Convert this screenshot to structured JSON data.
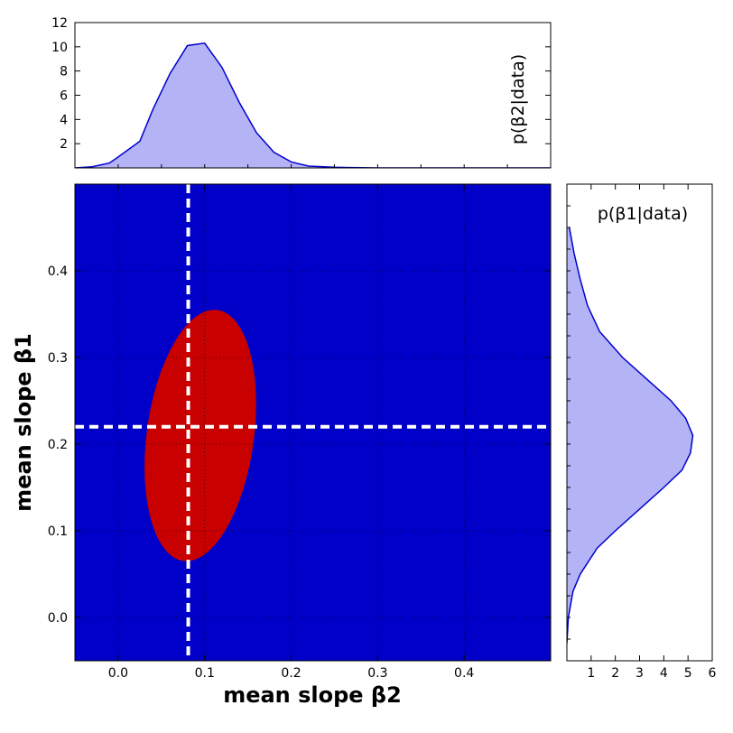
{
  "colors": {
    "contour_levels": [
      "#0000c8",
      "#0044ff",
      "#009eff",
      "#1ef2ff",
      "#8dff6c",
      "#f5ef00",
      "#ff8400",
      "#ff1e00",
      "#c80000"
    ],
    "marginal_fill": "#b3b3f5",
    "marginal_line": "#0000cc",
    "truth_line": "#ffffff"
  },
  "chart_data": [
    {
      "type": "heatmap",
      "panel": "joint",
      "xlabel": "mean slope β2",
      "ylabel": "mean slope β1",
      "xlim": [
        -0.05,
        0.5
      ],
      "ylim": [
        -0.05,
        0.5
      ],
      "xticks": [
        "0.0",
        "0.1",
        "0.2",
        "0.3",
        "0.4"
      ],
      "xtick_values": [
        0.0,
        0.1,
        0.2,
        0.3,
        0.4
      ],
      "yticks": [
        "0.0",
        "0.1",
        "0.2",
        "0.3",
        "0.4"
      ],
      "ytick_values": [
        0.0,
        0.1,
        0.2,
        0.3,
        0.4
      ],
      "grid": true,
      "distribution": {
        "center": [
          0.095,
          0.21
        ],
        "sd_x": 0.032,
        "sd_y": 0.072,
        "correlation": 0.25
      },
      "truth": {
        "beta2": 0.081,
        "beta1": 0.22
      }
    },
    {
      "type": "area",
      "panel": "top-marginal",
      "label": "p(β2|data)",
      "xlim": [
        -0.05,
        0.5
      ],
      "ylim": [
        0,
        12
      ],
      "yticks": [
        "2",
        "4",
        "6",
        "8",
        "10",
        "12"
      ],
      "ytick_values": [
        2,
        4,
        6,
        8,
        10,
        12
      ],
      "x": [
        -0.05,
        -0.03,
        -0.01,
        0.0,
        0.025,
        0.04,
        0.06,
        0.08,
        0.1,
        0.12,
        0.14,
        0.16,
        0.18,
        0.2,
        0.22,
        0.25,
        0.3,
        0.5
      ],
      "values": [
        0.0,
        0.1,
        0.4,
        0.9,
        2.2,
        4.8,
        7.8,
        10.1,
        10.3,
        8.3,
        5.4,
        2.9,
        1.3,
        0.5,
        0.15,
        0.05,
        0.0,
        0.0
      ]
    },
    {
      "type": "area",
      "panel": "right-marginal",
      "orientation": "horizontal",
      "label": "p(β1|data)",
      "xlim": [
        0,
        6
      ],
      "xticks": [
        "1",
        "2",
        "3",
        "4",
        "5",
        "6"
      ],
      "xtick_values": [
        1,
        2,
        3,
        4,
        5,
        6
      ],
      "y": [
        -0.03,
        0.0,
        0.03,
        0.05,
        0.08,
        0.1,
        0.13,
        0.15,
        0.17,
        0.19,
        0.21,
        0.23,
        0.25,
        0.27,
        0.3,
        0.33,
        0.36,
        0.39,
        0.42,
        0.45
      ],
      "values": [
        0.0,
        0.06,
        0.25,
        0.55,
        1.25,
        2.0,
        3.2,
        4.0,
        4.75,
        5.1,
        5.2,
        4.9,
        4.3,
        3.5,
        2.3,
        1.35,
        0.85,
        0.55,
        0.3,
        0.1
      ]
    }
  ]
}
